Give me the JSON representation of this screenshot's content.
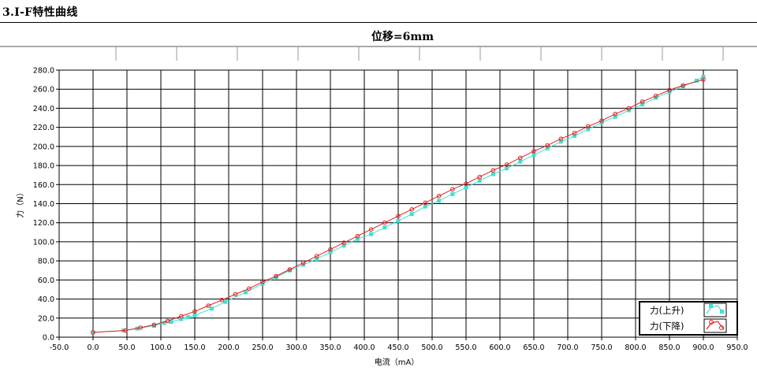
{
  "section_title": "3.I-F特性曲线",
  "chart_data": {
    "type": "line",
    "title": "位移=6mm",
    "xlabel": "电流（mA）",
    "ylabel": "力（N）",
    "xlim": [
      -50,
      950
    ],
    "ylim": [
      0,
      280
    ],
    "xticks": [
      "-50.0",
      "0.0",
      "50.0",
      "100.0",
      "150.0",
      "200.0",
      "250.0",
      "300.0",
      "350.0",
      "400.0",
      "450.0",
      "500.0",
      "550.0",
      "600.0",
      "650.0",
      "700.0",
      "750.0",
      "800.0",
      "850.0",
      "900.0",
      "950.0"
    ],
    "yticks": [
      "0.0",
      "20.0",
      "40.0",
      "60.0",
      "80.0",
      "100.0",
      "120.0",
      "140.0",
      "160.0",
      "180.0",
      "200.0",
      "220.0",
      "240.0",
      "260.0",
      "280.0"
    ],
    "grid": true,
    "legend_position": "bottom-right",
    "series": [
      {
        "name": "力(上升)",
        "color": "#40e0d0",
        "marker": "square",
        "x": [
          0,
          45,
          65,
          90,
          105,
          115,
          130,
          140,
          150,
          175,
          195,
          225,
          250,
          270,
          290,
          310,
          330,
          350,
          370,
          390,
          410,
          430,
          450,
          470,
          490,
          510,
          530,
          550,
          570,
          590,
          610,
          630,
          650,
          670,
          690,
          710,
          730,
          750,
          770,
          790,
          810,
          830,
          850,
          870,
          890,
          900
        ],
        "y": [
          5,
          7,
          9,
          12,
          15,
          16,
          19,
          21,
          23,
          30,
          37,
          47,
          56,
          63,
          70,
          76,
          82,
          89,
          96,
          103,
          108,
          115,
          122,
          129,
          137,
          143,
          150,
          157,
          164,
          171,
          177,
          184,
          191,
          198,
          205,
          211,
          218,
          225,
          231,
          238,
          244,
          251,
          257,
          263,
          269,
          273
        ]
      },
      {
        "name": "力(下降)",
        "color": "#e02020",
        "marker": "circle",
        "x": [
          0,
          48,
          70,
          90,
          110,
          130,
          150,
          170,
          190,
          210,
          230,
          250,
          270,
          290,
          310,
          330,
          350,
          370,
          390,
          410,
          430,
          450,
          470,
          490,
          510,
          530,
          550,
          570,
          590,
          610,
          630,
          650,
          670,
          690,
          710,
          730,
          750,
          770,
          790,
          810,
          830,
          850,
          870,
          900
        ],
        "y": [
          5,
          7,
          10,
          13,
          17,
          22,
          27,
          33,
          39,
          45,
          51,
          58,
          64,
          71,
          78,
          85,
          92,
          99,
          106,
          113,
          120,
          127,
          134,
          141,
          148,
          155,
          161,
          168,
          175,
          181,
          188,
          195,
          201,
          208,
          214,
          221,
          227,
          234,
          240,
          247,
          253,
          259,
          264,
          270
        ]
      }
    ]
  }
}
